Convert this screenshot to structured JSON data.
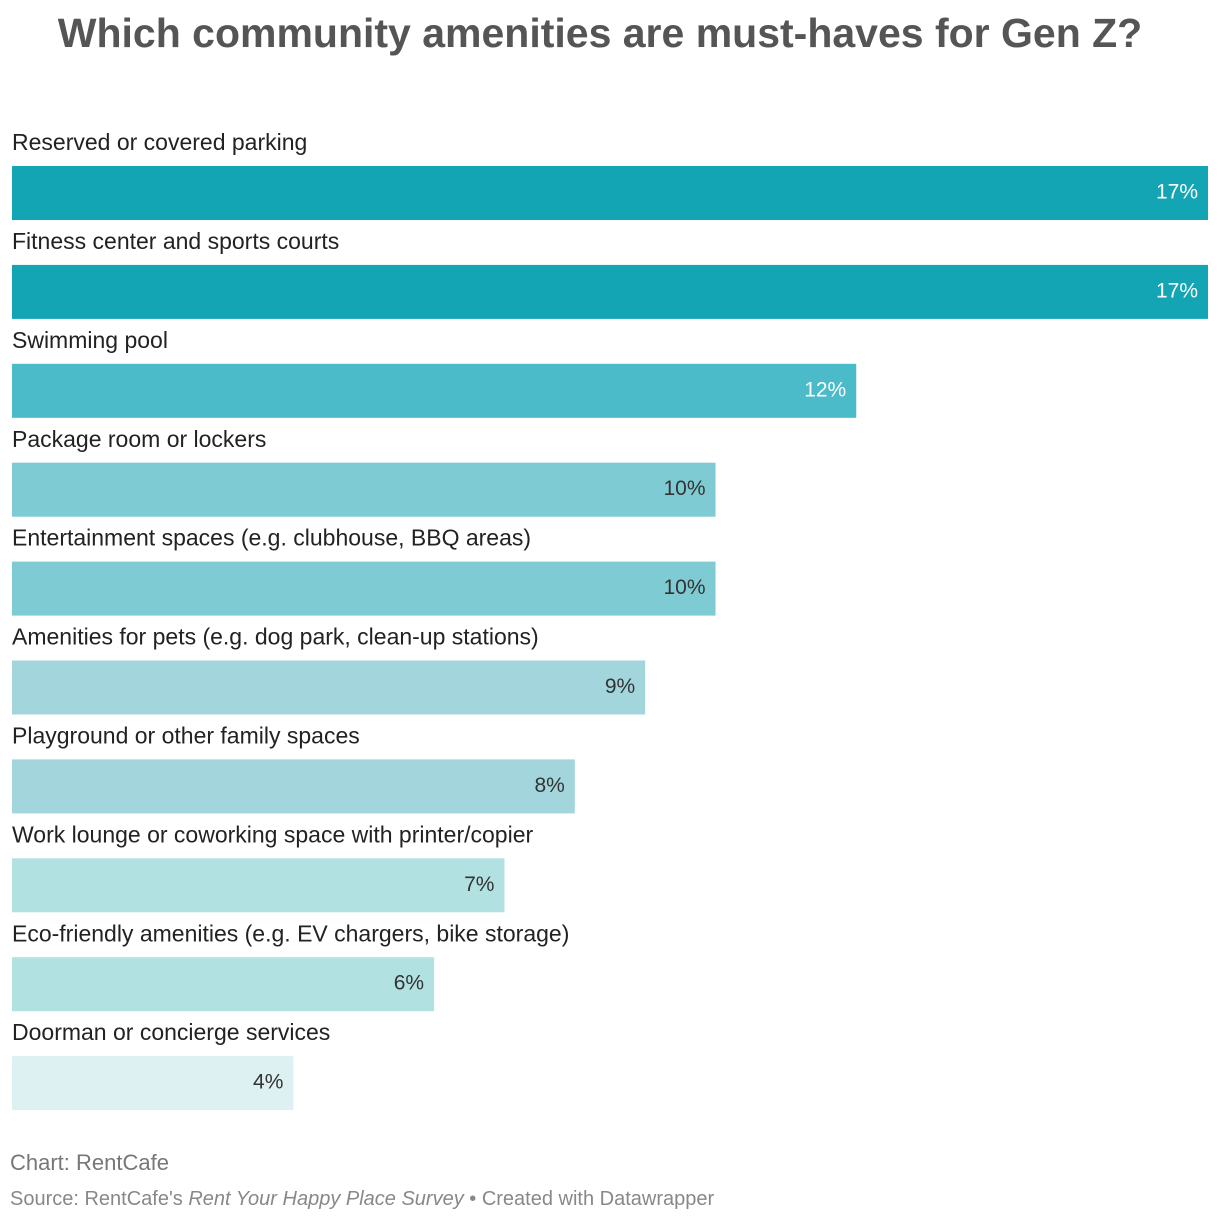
{
  "chart_data": {
    "type": "bar",
    "orientation": "horizontal",
    "title": "Which community amenities are must-haves for Gen Z?",
    "categories": [
      "Reserved or covered parking",
      "Fitness center and sports courts",
      "Swimming pool",
      "Package room or lockers",
      "Entertainment spaces (e.g. clubhouse, BBQ areas)",
      "Amenities for pets (e.g. dog park, clean-up stations)",
      "Playground or other family spaces",
      "Work lounge or coworking space with printer/copier",
      "Eco-friendly amenities (e.g. EV chargers, bike storage)",
      "Doorman or concierge services"
    ],
    "values": [
      17,
      17,
      12,
      10,
      10,
      9,
      8,
      7,
      6,
      4
    ],
    "value_labels": [
      "17%",
      "17%",
      "12%",
      "10%",
      "10%",
      "9%",
      "8%",
      "7%",
      "6%",
      "4%"
    ],
    "colors": [
      "#14a5b5",
      "#14a5b5",
      "#4bbac9",
      "#7ecbd4",
      "#7ecbd4",
      "#a2d6dc",
      "#a2d6dc",
      "#b2e1e2",
      "#b2e1e2",
      "#ddf0f2"
    ],
    "xlim": [
      0,
      17
    ],
    "credit": "Chart: RentCafe",
    "source_prefix": "Source: RentCafe's ",
    "source_survey": "Rent Your Happy Place Survey",
    "source_suffix": " • Created with Datawrapper"
  }
}
